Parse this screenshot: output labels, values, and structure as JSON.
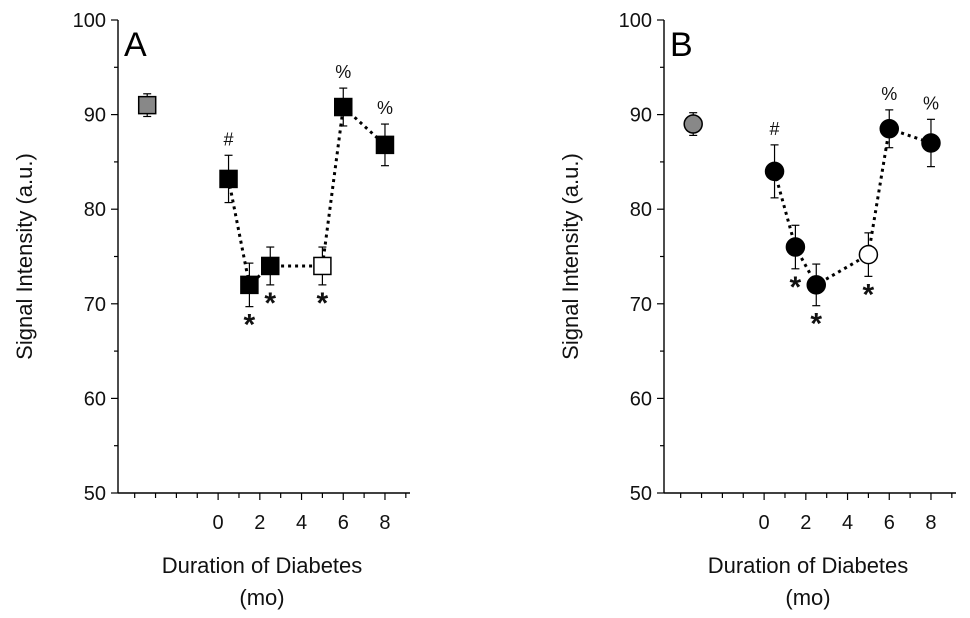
{
  "chart_data": [
    {
      "type": "scatter",
      "panel_label": "A",
      "marker": "square",
      "ylabel": "Signal Intensity (a.u.)",
      "xlabel_line1": "Duration of Diabetes",
      "xlabel_line2": "(mo)",
      "ylim": [
        50,
        100
      ],
      "yticks": [
        50,
        60,
        70,
        80,
        90,
        100
      ],
      "xticks": [
        0,
        2,
        4,
        6,
        8
      ],
      "xlim": [
        -4.8,
        9.2
      ],
      "reference_point": {
        "x": -3.4,
        "y": 91,
        "err": 1.2,
        "fill": "#888888"
      },
      "points": [
        {
          "x": 0.5,
          "y": 83.2,
          "err": 2.5,
          "fill": "#000000",
          "label": "#"
        },
        {
          "x": 1.5,
          "y": 72.0,
          "err": 2.3,
          "fill": "#000000",
          "label": "*"
        },
        {
          "x": 2.5,
          "y": 74.0,
          "err": 2.0,
          "fill": "#000000",
          "label": "*"
        },
        {
          "x": 5.0,
          "y": 74.0,
          "err": 2.0,
          "fill": "#ffffff",
          "label": "*"
        },
        {
          "x": 6.0,
          "y": 90.8,
          "err": 2.0,
          "fill": "#000000",
          "label": "%"
        },
        {
          "x": 8.0,
          "y": 86.8,
          "err": 2.2,
          "fill": "#000000",
          "label": "%"
        }
      ]
    },
    {
      "type": "scatter",
      "panel_label": "B",
      "marker": "circle",
      "ylabel": "Signal Intensity (a.u.)",
      "xlabel_line1": "Duration of Diabetes",
      "xlabel_line2": "(mo)",
      "ylim": [
        50,
        100
      ],
      "yticks": [
        50,
        60,
        70,
        80,
        90,
        100
      ],
      "xticks": [
        0,
        2,
        4,
        6,
        8
      ],
      "xlim": [
        -4.8,
        9.2
      ],
      "reference_point": {
        "x": -3.4,
        "y": 89,
        "err": 1.2,
        "fill": "#888888"
      },
      "points": [
        {
          "x": 0.5,
          "y": 84.0,
          "err": 2.8,
          "fill": "#000000",
          "label": "#"
        },
        {
          "x": 1.5,
          "y": 76.0,
          "err": 2.3,
          "fill": "#000000",
          "label": "*"
        },
        {
          "x": 2.5,
          "y": 72.0,
          "err": 2.2,
          "fill": "#000000",
          "label": "*"
        },
        {
          "x": 5.0,
          "y": 75.2,
          "err": 2.3,
          "fill": "#ffffff",
          "label": "*"
        },
        {
          "x": 6.0,
          "y": 88.5,
          "err": 2.0,
          "fill": "#000000",
          "label": "%"
        },
        {
          "x": 8.0,
          "y": 87.0,
          "err": 2.5,
          "fill": "#000000",
          "label": "%"
        }
      ]
    }
  ]
}
